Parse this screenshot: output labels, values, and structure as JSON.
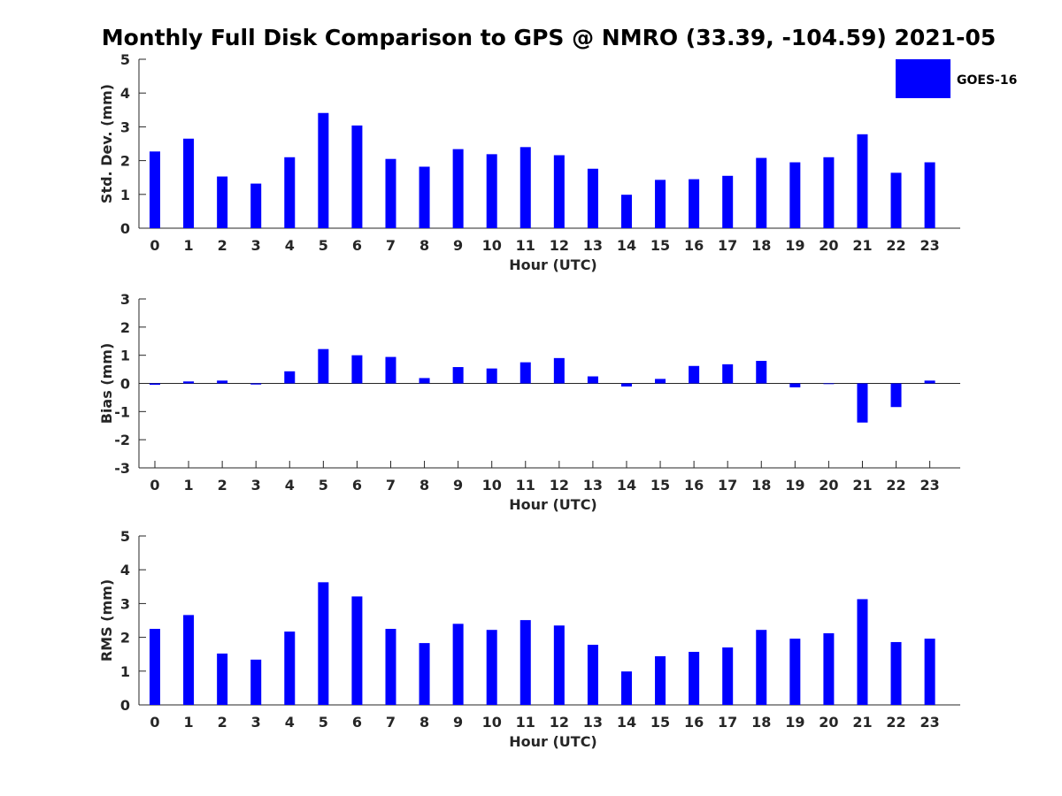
{
  "title": "Monthly Full Disk Comparison to GPS @ NMRO (33.39, -104.59) 2021-05",
  "legend": {
    "label": "GOES-16",
    "color": "#0000ff",
    "placement": "top-right"
  },
  "chart_data": [
    {
      "type": "bar",
      "ylabel": "Std. Dev. (mm)",
      "xlabel": "Hour (UTC)",
      "categories": [
        "0",
        "1",
        "2",
        "3",
        "4",
        "5",
        "6",
        "7",
        "8",
        "9",
        "10",
        "11",
        "12",
        "13",
        "14",
        "15",
        "16",
        "17",
        "18",
        "19",
        "20",
        "21",
        "22",
        "23"
      ],
      "series": [
        {
          "name": "GOES-16",
          "color": "#0000ff",
          "values": [
            2.27,
            2.65,
            1.53,
            1.32,
            2.1,
            3.41,
            3.04,
            2.05,
            1.82,
            2.34,
            2.19,
            2.4,
            2.16,
            1.76,
            0.99,
            1.43,
            1.45,
            1.55,
            2.08,
            1.95,
            2.1,
            2.78,
            1.64,
            1.95
          ]
        }
      ],
      "ylim": [
        0,
        5
      ],
      "yticks": [
        0,
        1,
        2,
        3,
        4,
        5
      ],
      "grid": false
    },
    {
      "type": "bar",
      "ylabel": "Bias (mm)",
      "xlabel": "Hour (UTC)",
      "categories": [
        "0",
        "1",
        "2",
        "3",
        "4",
        "5",
        "6",
        "7",
        "8",
        "9",
        "10",
        "11",
        "12",
        "13",
        "14",
        "15",
        "16",
        "17",
        "18",
        "19",
        "20",
        "21",
        "22",
        "23"
      ],
      "series": [
        {
          "name": "GOES-16",
          "color": "#0000ff",
          "values": [
            -0.05,
            0.07,
            0.1,
            -0.04,
            0.43,
            1.22,
            1.0,
            0.94,
            0.19,
            0.58,
            0.53,
            0.75,
            0.9,
            0.25,
            -0.11,
            0.16,
            0.62,
            0.68,
            0.8,
            -0.14,
            -0.01,
            -1.39,
            -0.84,
            0.1
          ]
        }
      ],
      "ylim": [
        -3,
        3
      ],
      "yticks": [
        -3,
        -2,
        -1,
        0,
        1,
        2,
        3
      ],
      "zero_line": true,
      "grid": false
    },
    {
      "type": "bar",
      "ylabel": "RMS (mm)",
      "xlabel": "Hour (UTC)",
      "categories": [
        "0",
        "1",
        "2",
        "3",
        "4",
        "5",
        "6",
        "7",
        "8",
        "9",
        "10",
        "11",
        "12",
        "13",
        "14",
        "15",
        "16",
        "17",
        "18",
        "19",
        "20",
        "21",
        "22",
        "23"
      ],
      "series": [
        {
          "name": "GOES-16",
          "color": "#0000ff",
          "values": [
            2.25,
            2.66,
            1.52,
            1.34,
            2.17,
            3.63,
            3.21,
            2.25,
            1.83,
            2.4,
            2.22,
            2.51,
            2.35,
            1.78,
            0.99,
            1.44,
            1.57,
            1.7,
            2.22,
            1.96,
            2.12,
            3.13,
            1.86,
            1.96
          ]
        }
      ],
      "ylim": [
        0,
        5
      ],
      "yticks": [
        0,
        1,
        2,
        3,
        4,
        5
      ],
      "grid": false
    }
  ]
}
